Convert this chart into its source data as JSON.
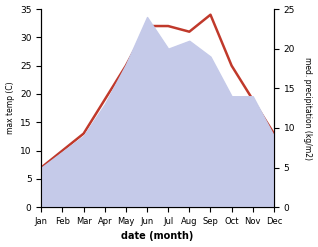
{
  "months": [
    "Jan",
    "Feb",
    "Mar",
    "Apr",
    "May",
    "Jun",
    "Jul",
    "Aug",
    "Sep",
    "Oct",
    "Nov",
    "Dec"
  ],
  "temp": [
    7,
    10,
    13,
    19,
    25,
    32,
    32,
    31,
    34,
    25,
    19,
    13
  ],
  "precip": [
    5,
    7,
    9,
    13,
    18,
    24,
    20,
    21,
    19,
    14,
    14,
    9
  ],
  "temp_ylim": [
    0,
    35
  ],
  "precip_ylim": [
    0,
    25
  ],
  "temp_color": "#c0392b",
  "precip_fill_color": "#c5cae9",
  "xlabel": "date (month)",
  "ylabel_left": "max temp (C)",
  "ylabel_right": "med. precipitation (kg/m2)",
  "bg_color": "#ffffff"
}
